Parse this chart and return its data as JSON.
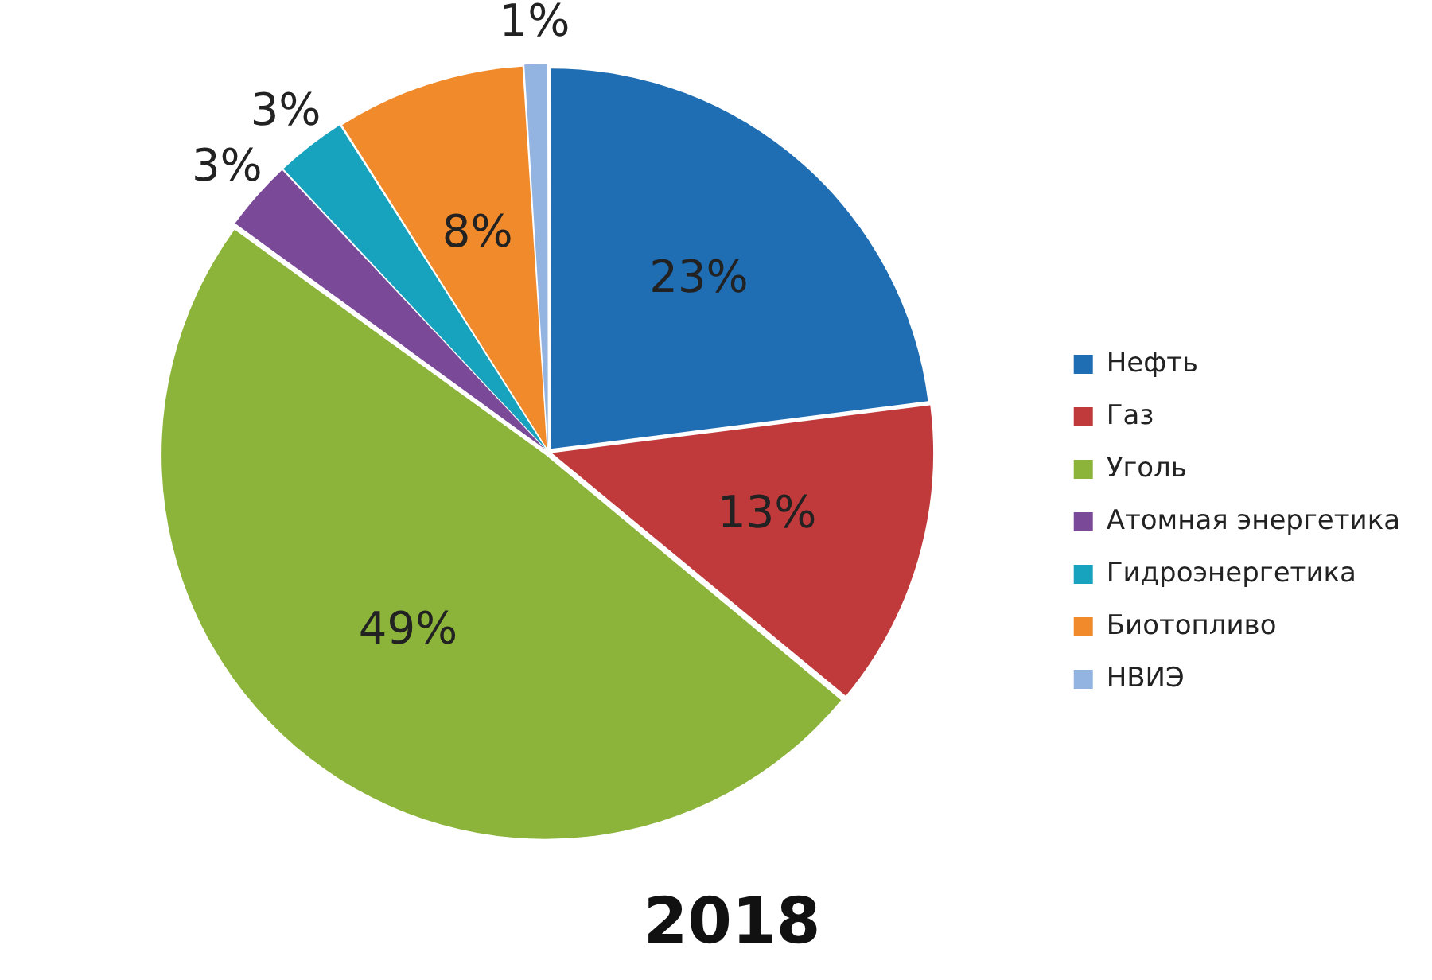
{
  "chart_data": {
    "type": "pie",
    "title": "2018",
    "categories": [
      "Нефть",
      "Газ",
      "Уголь",
      "Атомная энергетика",
      "Гидроэнергетика",
      "Биотопливо",
      "НВИЭ"
    ],
    "values": [
      23,
      13,
      49,
      3,
      3,
      8,
      1
    ],
    "value_labels": [
      "23%",
      "13%",
      "49%",
      "3%",
      "3%",
      "8%",
      "1%"
    ],
    "colors": [
      "#1f6db3",
      "#c0393b",
      "#8cb43a",
      "#7a4a98",
      "#17a2bd",
      "#f08a2a",
      "#93b4e0"
    ],
    "legend": "right"
  }
}
